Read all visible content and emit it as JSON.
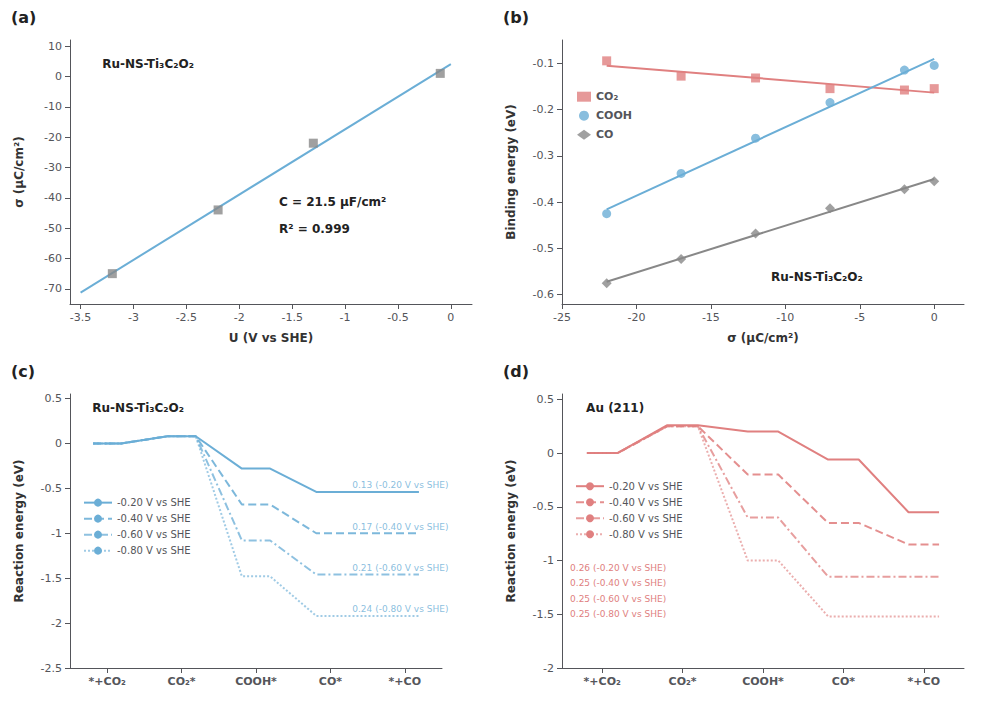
{
  "chart_data": [
    {
      "type": "scatter",
      "title": "(a)",
      "xlabel": "U (V vs SHE)",
      "ylabel": "σ (μC/cm²)",
      "annotations": [
        "Ru-NS-Ti₃C₂O₂",
        "C = 21.5 μF/cm²",
        "R² = 0.999"
      ],
      "xlim": [
        -3.6,
        0.2
      ],
      "xticks": [
        -3.5,
        -3,
        -2.5,
        -2,
        -1.5,
        -1,
        -0.5,
        0
      ],
      "ylim": [
        -75,
        12
      ],
      "yticks": [
        10,
        0,
        -10,
        -20,
        -30,
        -40,
        -50,
        -60,
        -70
      ],
      "grid": false,
      "series": [
        {
          "type": "line",
          "color": "#6baed6",
          "line_style": "solid",
          "x": [
            -3.5,
            0
          ],
          "values": [
            -71.2241379,
            4.0727969
          ]
        },
        {
          "type": "scatter",
          "color": "#888888",
          "marker": "square",
          "x": [
            -3.2,
            -2.2,
            -1.3,
            -0.1
          ],
          "values": [
            -65,
            -44,
            -22,
            1
          ]
        }
      ]
    },
    {
      "type": "scatter",
      "title": "(b)",
      "xlabel": "σ (μC/cm²)",
      "ylabel": "Binding energy (eV)",
      "annotations": [
        "Ru-NS-Ti₃C₂O₂"
      ],
      "xlim": [
        -25,
        2
      ],
      "xticks": [
        -25,
        -20,
        -15,
        -10,
        -5,
        0
      ],
      "ylim": [
        -0.62,
        -0.05
      ],
      "yticks": [
        -0.1,
        -0.2,
        -0.3,
        -0.4,
        -0.5,
        -0.6
      ],
      "grid": false,
      "legend": "left",
      "series": [
        {
          "name": "CO₂",
          "type": "scatter",
          "color": "#e08080",
          "marker": "square",
          "x": [
            -22,
            -17,
            -12,
            -7,
            -2,
            0
          ],
          "values": [
            -0.095,
            -0.128,
            -0.132,
            -0.155,
            -0.158,
            -0.155
          ]
        },
        {
          "type": "line",
          "color": "#e08080",
          "line_style": "solid",
          "x": [
            -22,
            0
          ],
          "values": [
            -0.1054153,
            -0.1636262
          ]
        },
        {
          "name": "COOH",
          "type": "scatter",
          "color": "#6baed6",
          "marker": "circle",
          "x": [
            -22,
            -17,
            -12,
            -7,
            -2,
            0
          ],
          "values": [
            -0.425,
            -0.338,
            -0.262,
            -0.185,
            -0.115,
            -0.105
          ]
        },
        {
          "type": "line",
          "color": "#6baed6",
          "line_style": "solid",
          "x": [
            -22,
            0
          ],
          "values": [
            -0.4155766,
            -0.0906306
          ]
        },
        {
          "name": "CO",
          "type": "scatter",
          "color": "#888888",
          "marker": "diamond",
          "x": [
            -22,
            -17,
            -12,
            -7,
            -2,
            0
          ],
          "values": [
            -0.575,
            -0.523,
            -0.468,
            -0.413,
            -0.372,
            -0.355
          ]
        },
        {
          "type": "line",
          "color": "#888888",
          "line_style": "solid",
          "x": [
            -22,
            0
          ],
          "values": [
            -0.5720378,
            -0.3501351
          ]
        }
      ]
    },
    {
      "type": "line",
      "title": "(c)",
      "ylabel": "Reaction energy (eV)",
      "annotations": [
        "Ru-NS-Ti₃C₂O₂"
      ],
      "categories": [
        "*+CO₂",
        "CO₂*",
        "COOH*",
        "CO*",
        "*+CO"
      ],
      "color": "#6baed6",
      "ylim": [
        -2.5,
        0.55
      ],
      "yticks": [
        0.5,
        0,
        -0.5,
        -1,
        -1.5,
        -2,
        -2.5
      ],
      "grid": false,
      "legend": "lower left",
      "series": [
        {
          "name": "-0.20 V vs SHE",
          "line_style": "solid",
          "values": [
            0.0,
            0.08,
            -0.28,
            -0.54,
            -0.54
          ],
          "annotation": "0.13 (-0.20 V vs SHE)"
        },
        {
          "name": "-0.40 V vs SHE",
          "line_style": "dashed",
          "values": [
            0.0,
            0.08,
            -0.68,
            -1.0,
            -1.0
          ],
          "annotation": "0.17 (-0.40 V vs SHE)"
        },
        {
          "name": "-0.60 V vs SHE",
          "line_style": "dashdot",
          "values": [
            0.0,
            0.08,
            -1.08,
            -1.46,
            -1.46
          ],
          "annotation": "0.21 (-0.60 V vs SHE)"
        },
        {
          "name": "-0.80 V vs SHE",
          "line_style": "dotted",
          "values": [
            0.0,
            0.08,
            -1.48,
            -1.92,
            -1.92
          ],
          "annotation": "0.24 (-0.80 V vs SHE)"
        }
      ]
    },
    {
      "type": "line",
      "title": "(d)",
      "ylabel": "Reaction energy (eV)",
      "annotations": [
        "Au (211)",
        "0.26 (-0.20 V vs SHE)",
        "0.25 (-0.40 V vs SHE)",
        "0.25 (-0.60 V vs SHE)",
        "0.25 (-0.80 V vs SHE)"
      ],
      "categories": [
        "*+CO₂",
        "CO₂*",
        "COOH*",
        "CO*",
        "*+CO"
      ],
      "color": "#e08080",
      "ylim": [
        -2.0,
        0.55
      ],
      "yticks": [
        0.5,
        0,
        -0.5,
        -1,
        -1.5,
        -2
      ],
      "grid": false,
      "legend": "lower left",
      "series": [
        {
          "name": "-0.20 V vs SHE",
          "line_style": "solid",
          "values": [
            0.0,
            0.26,
            0.2,
            -0.06,
            -0.55
          ]
        },
        {
          "name": "-0.40 V vs SHE",
          "line_style": "dashed",
          "values": [
            0.0,
            0.25,
            -0.2,
            -0.65,
            -0.85
          ]
        },
        {
          "name": "-0.60 V vs SHE",
          "line_style": "dashdot",
          "values": [
            0.0,
            0.25,
            -0.6,
            -1.15,
            -1.15
          ]
        },
        {
          "name": "-0.80 V vs SHE",
          "line_style": "dotted",
          "values": [
            0.0,
            0.25,
            -1.0,
            -1.52,
            -1.52
          ]
        }
      ]
    }
  ]
}
